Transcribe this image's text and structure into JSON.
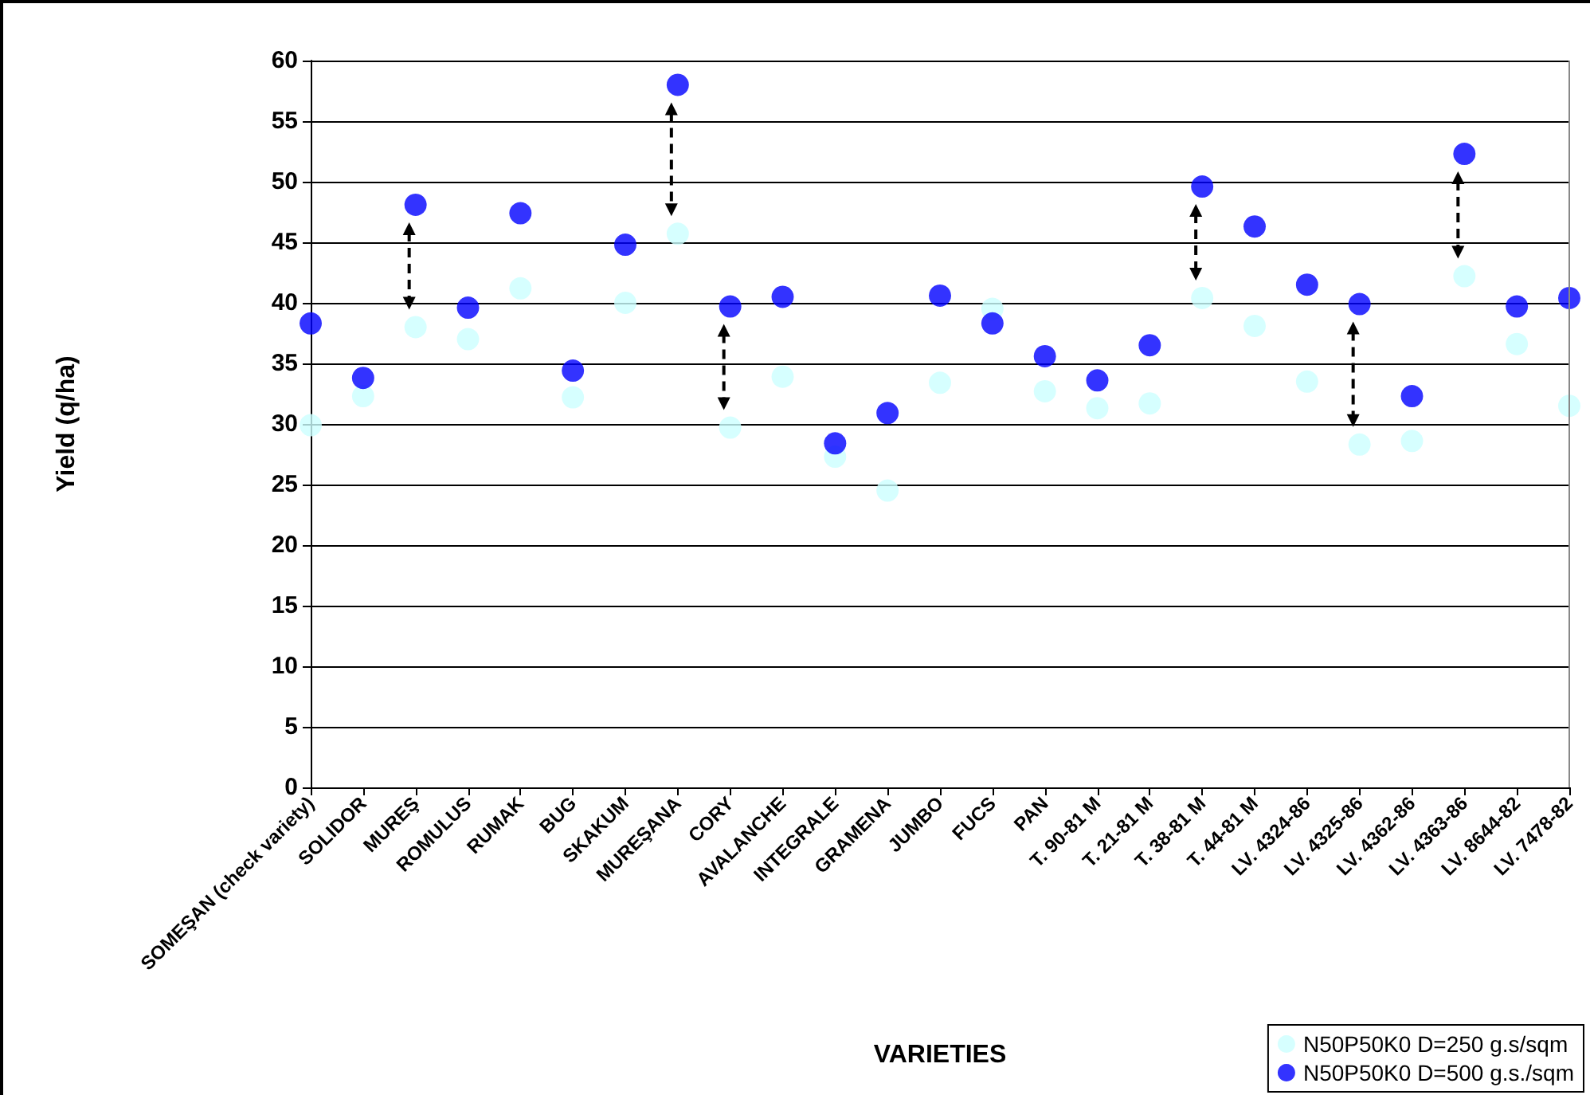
{
  "chart_data": {
    "type": "scatter",
    "xlabel": "VARIETIES",
    "ylabel": "Yield (q/ha)",
    "categories": [
      "SOMEŞAN (check variety)",
      "SOLIDOR",
      "MUREŞ",
      "ROMULUS",
      "RUMAK",
      "BUG",
      "SKAKUM",
      "MUREŞANA",
      "CORY",
      "AVALANCHE",
      "INTEGRALE",
      "GRAMENA",
      "JUMBO",
      "FUCS",
      "PAN",
      "T. 90-81 M",
      "T. 21-81 M",
      "T. 38-81 M",
      "T. 44-81 M",
      "LV. 4324-86",
      "LV. 4325-86",
      "LV. 4362-86",
      "LV. 4363-86",
      "LV. 8644-82",
      "LV. 7478-82"
    ],
    "series": [
      {
        "name": "N50P50K0 D=250 g.s/sqm",
        "color": "#ccffff",
        "values": [
          29.9,
          32.3,
          38.0,
          37.0,
          41.2,
          32.2,
          40.0,
          45.7,
          29.7,
          33.9,
          27.3,
          24.5,
          33.4,
          39.5,
          32.7,
          31.3,
          31.7,
          40.4,
          38.1,
          33.5,
          28.3,
          28.6,
          42.2,
          36.6,
          31.5
        ]
      },
      {
        "name": "N50P50K0 D=500 g.s./sqm",
        "color": "#0000ff",
        "values": [
          38.3,
          33.8,
          48.1,
          39.6,
          47.4,
          34.4,
          44.8,
          58.0,
          39.7,
          40.5,
          28.4,
          30.9,
          40.6,
          38.3,
          35.6,
          33.6,
          36.5,
          49.6,
          46.3,
          41.5,
          39.9,
          32.3,
          52.3,
          39.7,
          40.4
        ]
      }
    ],
    "ylim": [
      0,
      60
    ],
    "yticks": [
      0,
      5,
      10,
      15,
      20,
      25,
      30,
      35,
      40,
      45,
      50,
      55,
      60
    ],
    "grid": "y",
    "legend": "bottom right",
    "marker": "circle"
  }
}
